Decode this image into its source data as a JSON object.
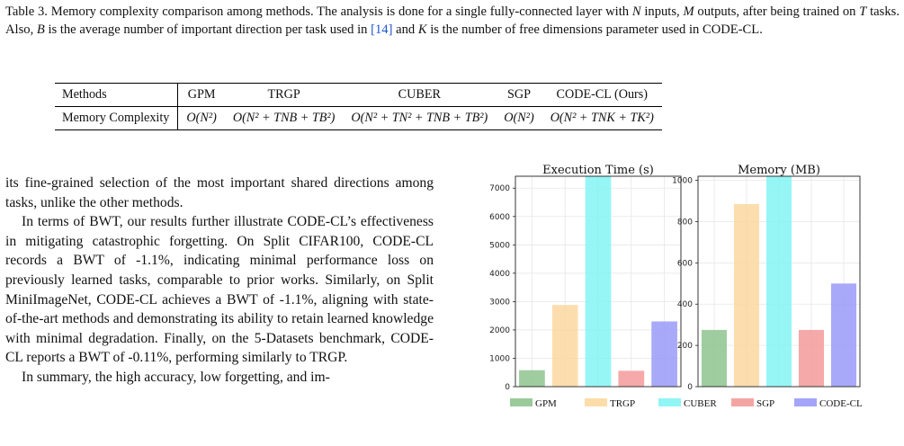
{
  "caption": {
    "label": "Table 3.",
    "text_a": "Memory complexity comparison among methods. The analysis is done for a single fully-connected layer with",
    "var_n": "N",
    "text_b": "inputs,",
    "var_m": "M",
    "text_c": "outputs, after being trained on",
    "var_t": "T",
    "text_d": "tasks. Also,",
    "var_b": "B",
    "text_e": "is the average number of important direction per task used in",
    "ref": "[14]",
    "text_f": "and",
    "var_k": "K",
    "text_g": "is the number of free dimensions parameter used in CODE-CL."
  },
  "table": {
    "headers": [
      "Methods",
      "GPM",
      "TRGP",
      "CUBER",
      "SGP",
      "CODE-CL (Ours)"
    ],
    "row_label": "Memory Complexity",
    "row": [
      "O(N²)",
      "O(N² + TNB + TB²)",
      "O(N² + TN² + TNB + TB²)",
      "O(N²)",
      "O(N² + TNK + TK²)"
    ]
  },
  "body": {
    "p1": "its fine-grained selection of the most important shared directions among tasks, unlike the other methods.",
    "p2": "In terms of BWT, our results further illustrate CODE-CL’s effectiveness in mitigating catastrophic forgetting. On Split CIFAR100, CODE-CL records a BWT of -1.1%, indicating minimal performance loss on previously learned tasks, comparable to prior works. Similarly, on Split MiniImageNet, CODE-CL achieves a BWT of -1.1%, aligning with state-of-the-art methods and demonstrating its ability to retain learned knowledge with minimal degradation. Finally, on the 5-Datasets benchmark, CODE-CL reports a BWT of -0.11%, performing similarly to TRGP.",
    "p3": "In summary, the high accuracy, low forgetting, and im-"
  },
  "chart_data": [
    {
      "type": "bar",
      "title": "Execution Time (s)",
      "categories": [
        "GPM",
        "TRGP",
        "CUBER",
        "SGP",
        "CODE-CL"
      ],
      "values": [
        580,
        2880,
        7420,
        560,
        2300
      ],
      "ylim": [
        0,
        7420
      ],
      "yticks": [
        0,
        1000,
        2000,
        3000,
        4000,
        5000,
        6000,
        7000
      ],
      "grid": true
    },
    {
      "type": "bar",
      "title": "Memory (MB)",
      "categories": [
        "GPM",
        "TRGP",
        "CUBER",
        "SGP",
        "CODE-CL"
      ],
      "values": [
        275,
        885,
        1020,
        275,
        500
      ],
      "ylim": [
        0,
        1020
      ],
      "yticks": [
        0,
        200,
        400,
        600,
        800,
        1000
      ],
      "grid": true
    }
  ],
  "legend": {
    "placement": "bottom",
    "items": [
      {
        "label": "GPM",
        "color": "#8fc48f"
      },
      {
        "label": "TRGP",
        "color": "#fcd8a0"
      },
      {
        "label": "CUBER",
        "color": "#84f4f4"
      },
      {
        "label": "SGP",
        "color": "#f49a9a"
      },
      {
        "label": "CODE-CL",
        "color": "#9a9af8"
      }
    ]
  }
}
